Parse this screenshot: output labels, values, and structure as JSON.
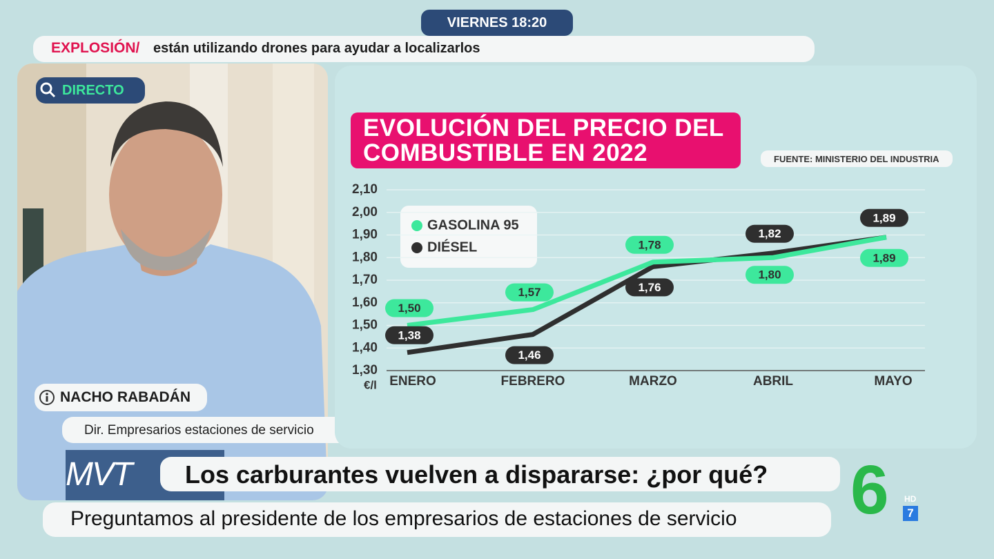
{
  "header": {
    "time": "VIERNES 18:20",
    "ticker_tag": "EXPLOSIÓN/",
    "ticker_text": "están utilizando drones para ayudar a localizarlos"
  },
  "video": {
    "live_tag": "DIRECTO",
    "speaker_name": "NACHO RABADÁN",
    "speaker_role": "Dir. Empresarios estaciones de servicio"
  },
  "chart_data": {
    "type": "line",
    "title": "EVOLUCIÓN DEL PRECIO DEL COMBUSTIBLE EN 2022",
    "source": "FUENTE: MINISTERIO DEL INDUSTRIA",
    "y_label": "€/l",
    "categories": [
      "ENERO",
      "FEBRERO",
      "MARZO",
      "ABRIL",
      "MAYO"
    ],
    "series": [
      {
        "name": "GASOLINA 95",
        "color": "#3de89c",
        "values": [
          1.5,
          1.57,
          1.78,
          1.8,
          1.89
        ],
        "value_labels": [
          "1,50",
          "1,57",
          "1,78",
          "1,80",
          "1,89"
        ]
      },
      {
        "name": "DIÉSEL",
        "color": "#2f2f2f",
        "values": [
          1.38,
          1.46,
          1.76,
          1.82,
          1.89
        ],
        "value_labels": [
          "1,38",
          "1,46",
          "1,76",
          "1,82",
          "1,89"
        ]
      }
    ],
    "ylim": [
      1.3,
      2.1
    ],
    "yticks": [
      {
        "value": 1.3,
        "label": "1,30"
      },
      {
        "value": 1.4,
        "label": "1,40"
      },
      {
        "value": 1.5,
        "label": "1,50"
      },
      {
        "value": 1.6,
        "label": "1,60"
      },
      {
        "value": 1.7,
        "label": "1,70"
      },
      {
        "value": 1.8,
        "label": "1,80"
      },
      {
        "value": 1.9,
        "label": "1,90"
      },
      {
        "value": 2.0,
        "label": "2,00"
      },
      {
        "value": 2.1,
        "label": "2,10"
      }
    ],
    "grid": true,
    "legend": "top-left"
  },
  "lower_third": {
    "program": "MVT",
    "headline": "Los carburantes vuelven a dispararse: ¿por qué?",
    "subline": "Preguntamos al presidente de los empresarios de estaciones de servicio"
  },
  "channel": {
    "logo": "6",
    "hd": "HD",
    "number": "7"
  }
}
